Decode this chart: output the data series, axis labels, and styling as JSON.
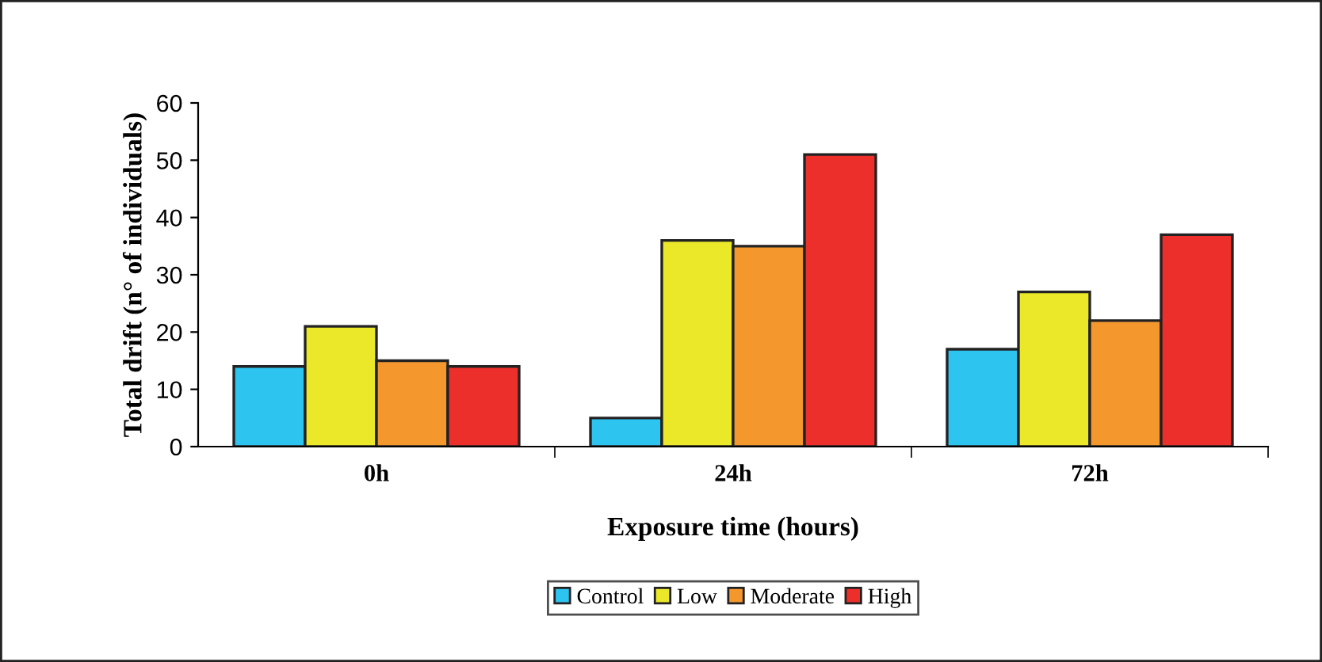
{
  "chart_data": {
    "type": "bar",
    "xlabel": "Exposure time (hours)",
    "ylabel": "Total drift (n° of individuals)",
    "categories": [
      "0h",
      "24h",
      "72h"
    ],
    "series": [
      {
        "name": "Control",
        "color": "#2ec4f0",
        "values": [
          14,
          5,
          17
        ]
      },
      {
        "name": "Low",
        "color": "#ebe82a",
        "values": [
          21,
          36,
          27
        ]
      },
      {
        "name": "Moderate",
        "color": "#f4982e",
        "values": [
          15,
          35,
          22
        ]
      },
      {
        "name": "High",
        "color": "#ec2f2a",
        "values": [
          14,
          51,
          37
        ]
      }
    ],
    "ylim": [
      0,
      60
    ],
    "yticks": [
      0,
      10,
      20,
      30,
      40,
      50,
      60
    ],
    "grid": false,
    "legend": "bottom"
  }
}
